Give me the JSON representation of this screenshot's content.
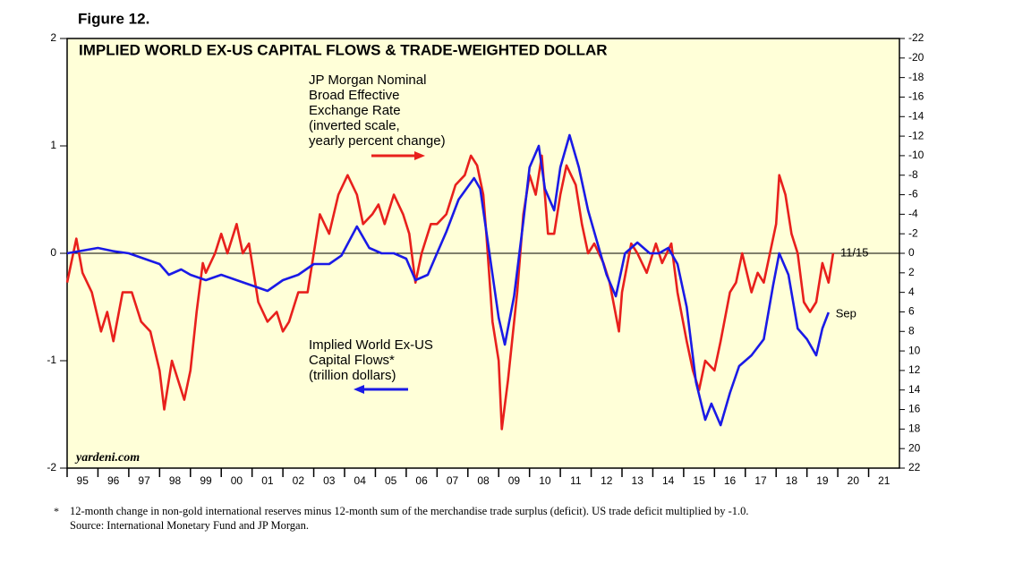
{
  "chart_data": {
    "type": "line",
    "figure_label": "Figure 12.",
    "title": "IMPLIED WORLD EX-US CAPITAL FLOWS & TRADE-WEIGHTED DOLLAR",
    "watermark": "yardeni.com",
    "xlim": [
      1995,
      2022
    ],
    "xticks": [
      {
        "value": 1995,
        "label": "95"
      },
      {
        "value": 1996,
        "label": "96"
      },
      {
        "value": 1997,
        "label": "97"
      },
      {
        "value": 1998,
        "label": "98"
      },
      {
        "value": 1999,
        "label": "99"
      },
      {
        "value": 2000,
        "label": "00"
      },
      {
        "value": 2001,
        "label": "01"
      },
      {
        "value": 2002,
        "label": "02"
      },
      {
        "value": 2003,
        "label": "03"
      },
      {
        "value": 2004,
        "label": "04"
      },
      {
        "value": 2005,
        "label": "05"
      },
      {
        "value": 2006,
        "label": "06"
      },
      {
        "value": 2007,
        "label": "07"
      },
      {
        "value": 2008,
        "label": "08"
      },
      {
        "value": 2009,
        "label": "09"
      },
      {
        "value": 2010,
        "label": "10"
      },
      {
        "value": 2011,
        "label": "11"
      },
      {
        "value": 2012,
        "label": "12"
      },
      {
        "value": 2013,
        "label": "13"
      },
      {
        "value": 2014,
        "label": "14"
      },
      {
        "value": 2015,
        "label": "15"
      },
      {
        "value": 2016,
        "label": "16"
      },
      {
        "value": 2017,
        "label": "17"
      },
      {
        "value": 2018,
        "label": "18"
      },
      {
        "value": 2019,
        "label": "19"
      },
      {
        "value": 2020,
        "label": "20"
      },
      {
        "value": 2021,
        "label": "21"
      }
    ],
    "ylim": [
      -2,
      2
    ],
    "yticks": [
      -2,
      -1,
      0,
      1,
      2
    ],
    "y2lim": [
      22,
      -22
    ],
    "y2ticks": [
      -22,
      -20,
      -18,
      -16,
      -14,
      -12,
      -10,
      -8,
      -6,
      -4,
      -2,
      0,
      2,
      4,
      6,
      8,
      10,
      12,
      14,
      16,
      18,
      20,
      22
    ],
    "series": [
      {
        "name_lines": [
          "JP Morgan Nominal",
          "Broad Effective",
          "Exchange Rate",
          "(inverted scale,",
          "yearly percent change)"
        ],
        "end_label": "11/15",
        "color": "#e8201c",
        "axis": "y2",
        "x": [
          1995.0,
          1995.3,
          1995.5,
          1995.8,
          1996.1,
          1996.3,
          1996.5,
          1996.8,
          1997.1,
          1997.4,
          1997.7,
          1998.0,
          1998.15,
          1998.4,
          1998.6,
          1998.8,
          1999.0,
          1999.2,
          1999.4,
          1999.5,
          1999.8,
          2000.0,
          2000.2,
          2000.5,
          2000.7,
          2000.9,
          2001.2,
          2001.5,
          2001.8,
          2002.0,
          2002.2,
          2002.5,
          2002.8,
          2003.0,
          2003.2,
          2003.5,
          2003.8,
          2004.1,
          2004.4,
          2004.6,
          2004.9,
          2005.1,
          2005.3,
          2005.6,
          2005.9,
          2006.1,
          2006.3,
          2006.5,
          2006.8,
          2007.0,
          2007.3,
          2007.6,
          2007.9,
          2008.1,
          2008.3,
          2008.5,
          2008.6,
          2008.8,
          2009.0,
          2009.1,
          2009.3,
          2009.6,
          2009.8,
          2010.0,
          2010.2,
          2010.4,
          2010.6,
          2010.8,
          2011.0,
          2011.2,
          2011.5,
          2011.7,
          2011.9,
          2012.1,
          2012.4,
          2012.6,
          2012.9,
          2013.0,
          2013.3,
          2013.5,
          2013.8,
          2014.1,
          2014.3,
          2014.6,
          2014.8,
          2015.1,
          2015.3,
          2015.5,
          2015.7,
          2016.0,
          2016.2,
          2016.5,
          2016.7,
          2016.9,
          2017.2,
          2017.4,
          2017.6,
          2017.8,
          2018.0,
          2018.1,
          2018.3,
          2018.5,
          2018.7,
          2018.9,
          2019.1,
          2019.3,
          2019.5,
          2019.7,
          2019.85
        ],
        "values": [
          3,
          -1.5,
          2,
          4,
          8,
          6,
          9,
          4,
          4,
          7,
          8,
          12,
          16,
          11,
          13,
          15,
          12,
          6,
          1,
          2,
          0,
          -2,
          0,
          -3,
          0,
          -1,
          5,
          7,
          6,
          8,
          7,
          4,
          4,
          0,
          -4,
          -2,
          -6,
          -8,
          -6,
          -3,
          -4,
          -5,
          -3,
          -6,
          -4,
          -2,
          3,
          0,
          -3,
          -3,
          -4,
          -7,
          -8,
          -10,
          -9,
          -6,
          -2,
          7,
          11,
          18,
          13,
          4,
          -4,
          -8,
          -6,
          -10,
          -2,
          -2,
          -6,
          -9,
          -7,
          -3,
          0,
          -1,
          1,
          3,
          8,
          4,
          -1,
          0,
          2,
          -1,
          1,
          -1,
          4,
          9,
          12,
          14,
          11,
          12,
          9,
          4,
          3,
          0,
          4,
          2,
          3,
          0,
          -3,
          -8,
          -6,
          -2,
          0,
          5,
          6,
          5,
          1,
          3,
          0
        ]
      },
      {
        "name_lines": [
          "Implied World Ex-US",
          "Capital Flows*",
          "(trillion dollars)"
        ],
        "end_label": "Sep",
        "color": "#1a1ae6",
        "x": [
          1995.0,
          1996.0,
          1996.5,
          1997.0,
          1997.5,
          1998.0,
          1998.3,
          1998.7,
          1999.0,
          1999.5,
          2000.0,
          2000.5,
          2001.0,
          2001.5,
          2002.0,
          2002.5,
          2003.0,
          2003.5,
          2003.9,
          2004.4,
          2004.8,
          2005.2,
          2005.6,
          2006.0,
          2006.3,
          2006.7,
          2007.0,
          2007.3,
          2007.7,
          2008.2,
          2008.4,
          2008.7,
          2009.0,
          2009.2,
          2009.5,
          2009.8,
          2010.0,
          2010.3,
          2010.5,
          2010.8,
          2011.0,
          2011.3,
          2011.6,
          2011.9,
          2012.2,
          2012.5,
          2012.8,
          2013.1,
          2013.5,
          2013.9,
          2014.2,
          2014.5,
          2014.8,
          2015.1,
          2015.4,
          2015.7,
          2015.9,
          2016.2,
          2016.5,
          2016.8,
          2017.2,
          2017.6,
          2017.9,
          2018.1,
          2018.4,
          2018.7,
          2019.0,
          2019.3,
          2019.5,
          2019.7
        ],
        "values": [
          0,
          0.05,
          0.02,
          0,
          -0.05,
          -0.1,
          -0.2,
          -0.15,
          -0.2,
          -0.25,
          -0.2,
          -0.25,
          -0.3,
          -0.35,
          -0.25,
          -0.2,
          -0.1,
          -0.1,
          -0.02,
          0.25,
          0.05,
          0,
          0,
          -0.05,
          -0.25,
          -0.2,
          0,
          0.2,
          0.5,
          0.7,
          0.6,
          0,
          -0.6,
          -0.85,
          -0.4,
          0.3,
          0.8,
          1,
          0.6,
          0.4,
          0.8,
          1.1,
          0.8,
          0.4,
          0.1,
          -0.2,
          -0.4,
          0,
          0.1,
          0,
          0,
          0.05,
          -0.1,
          -0.5,
          -1.2,
          -1.55,
          -1.4,
          -1.6,
          -1.3,
          -1.05,
          -0.95,
          -0.8,
          -0.3,
          0,
          -0.2,
          -0.7,
          -0.8,
          -0.95,
          -0.7,
          -0.55
        ]
      }
    ],
    "footnote_mark": "*",
    "footnote": "12-month change in non-gold international reserves minus 12-month sum of the merchandise trade surplus (deficit). US trade deficit multiplied by -1.0.",
    "source": "Source: International Monetary Fund and JP Morgan."
  }
}
